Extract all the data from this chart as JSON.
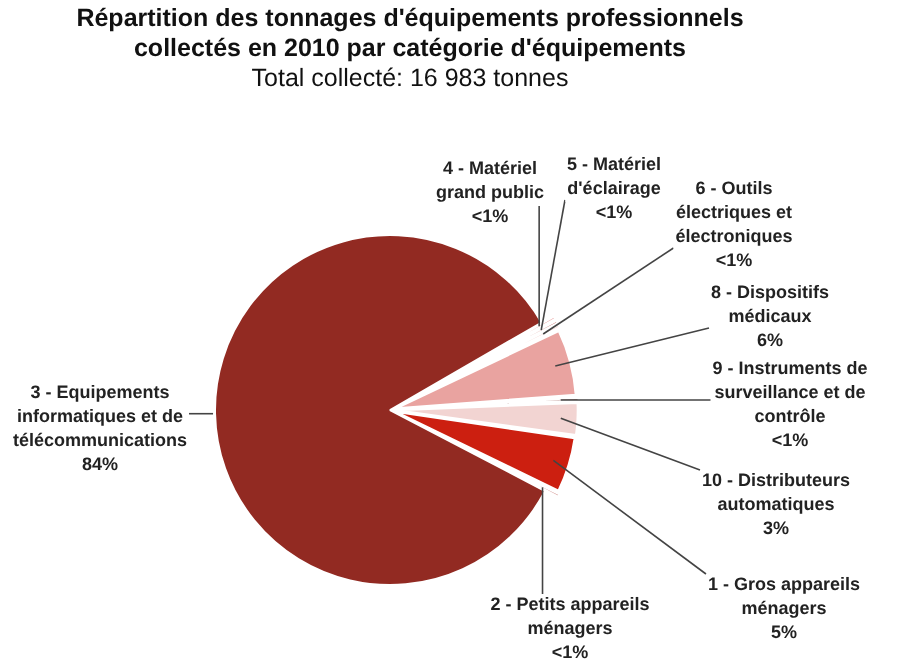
{
  "chart_data": {
    "type": "pie",
    "title": "Répartition des tonnages d'équipements professionnels collectés en 2010 par catégorie d'équipements",
    "subtitle": "Total collecté: 16 983 tonnes",
    "categories": [
      "4 - Matériel grand public",
      "5 - Matériel d'éclairage",
      "6 - Outils électriques et électroniques",
      "8 - Dispositifs médicaux",
      "9 - Instruments de surveillance et de contrôle",
      "10 - Distributeurs automatiques",
      "1 - Gros appareils ménagers",
      "2 - Petits appareils ménagers",
      "3 - Equipements informatiques et de télécommunications"
    ],
    "values": [
      0.4,
      0.4,
      0.4,
      6,
      0.4,
      3,
      5,
      0.4,
      84
    ],
    "value_labels": [
      "<1%",
      "<1%",
      "<1%",
      "6%",
      "<1%",
      "3%",
      "5%",
      "<1%",
      "84%"
    ],
    "colors": [
      "#d9534f",
      "#b8403a",
      "#f4c7c3",
      "#e9a3a0",
      "#6e1c17",
      "#f2d4d2",
      "#cc1f10",
      "#a8322c",
      "#922a22"
    ],
    "legend": false
  }
}
